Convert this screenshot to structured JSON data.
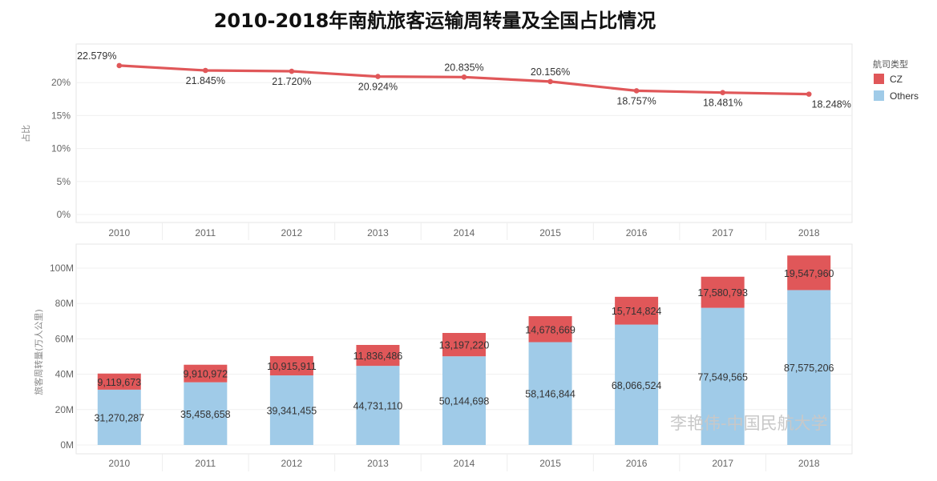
{
  "title": "2010-2018年南航旅客运输周转量及全国占比情况",
  "watermark": "李艳伟-中国民航大学",
  "legend": {
    "title": "航司类型",
    "items": [
      {
        "label": "CZ",
        "color": "#e05759"
      },
      {
        "label": "Others",
        "color": "#a0cbe8"
      }
    ]
  },
  "chart_data": [
    {
      "type": "line",
      "ylabel": "占比",
      "x": [
        "2010",
        "2011",
        "2012",
        "2013",
        "2014",
        "2015",
        "2016",
        "2017",
        "2018"
      ],
      "values": [
        22.579,
        21.845,
        21.72,
        20.924,
        20.835,
        20.156,
        18.757,
        18.481,
        18.248
      ],
      "data_labels": [
        "22.579%",
        "21.845%",
        "21.720%",
        "20.924%",
        "20.835%",
        "20.156%",
        "18.757%",
        "18.481%",
        "18.248%"
      ],
      "yticks": [
        "0%",
        "5%",
        "10%",
        "15%",
        "20%"
      ],
      "ylim": [
        0,
        25
      ],
      "color": "#e05759"
    },
    {
      "type": "bar",
      "stacked": true,
      "ylabel": "旅客周转量(万人公里)",
      "categories": [
        "2010",
        "2011",
        "2012",
        "2013",
        "2014",
        "2015",
        "2016",
        "2017",
        "2018"
      ],
      "series": [
        {
          "name": "Others",
          "color": "#a0cbe8",
          "values": [
            31270287,
            35458658,
            39341455,
            44731110,
            50144698,
            58146844,
            68066524,
            77549565,
            87575206
          ],
          "labels": [
            "31,270,287",
            "35,458,658",
            "39,341,455",
            "44,731,110",
            "50,144,698",
            "58,146,844",
            "68,066,524",
            "77,549,565",
            "87,575,206"
          ]
        },
        {
          "name": "CZ",
          "color": "#e05759",
          "values": [
            9119673,
            9910972,
            10915911,
            11836486,
            13197220,
            14678669,
            15714824,
            17580793,
            19547960
          ],
          "labels": [
            "9,119,673",
            "9,910,972",
            "10,915,911",
            "11,836,486",
            "13,197,220",
            "14,678,669",
            "15,714,824",
            "17,580,793",
            "19,547,960"
          ]
        }
      ],
      "yticks": [
        "0M",
        "20M",
        "40M",
        "60M",
        "80M",
        "100M"
      ],
      "ylim": [
        0,
        110000000
      ]
    }
  ]
}
